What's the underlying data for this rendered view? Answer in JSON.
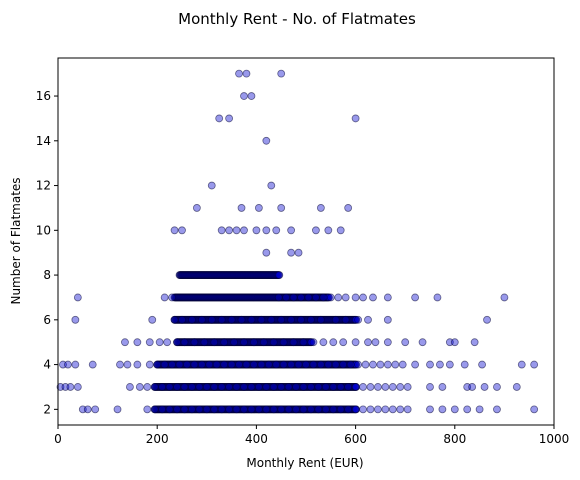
{
  "chart_data": {
    "type": "scatter",
    "title": "Monthly Rent - No. of Flatmates",
    "xlabel": "Monthly Rent (EUR)",
    "ylabel": "Number of Flatmates",
    "xlim": [
      0,
      1000
    ],
    "ylim": [
      1.3,
      17.7
    ],
    "xticks": [
      0,
      200,
      400,
      600,
      800,
      1000
    ],
    "yticks": [
      2,
      4,
      6,
      8,
      10,
      12,
      14,
      16
    ],
    "grid": false,
    "marker_fill": "#0000cc",
    "marker_edge": "#000033",
    "marker_alpha": 0.4,
    "series": [
      {
        "points": [
          [
            365,
            17
          ],
          [
            380,
            17
          ],
          [
            450,
            17
          ],
          [
            375,
            16
          ],
          [
            390,
            16
          ],
          [
            325,
            15
          ],
          [
            345,
            15
          ],
          [
            600,
            15
          ],
          [
            420,
            14
          ],
          [
            310,
            12
          ],
          [
            430,
            12
          ],
          [
            280,
            11
          ],
          [
            370,
            11
          ],
          [
            405,
            11
          ],
          [
            450,
            11
          ],
          [
            530,
            11
          ],
          [
            585,
            11
          ],
          [
            235,
            10
          ],
          [
            250,
            10
          ],
          [
            330,
            10
          ],
          [
            345,
            10
          ],
          [
            360,
            10
          ],
          [
            375,
            10
          ],
          [
            400,
            10
          ],
          [
            420,
            10
          ],
          [
            440,
            10
          ],
          [
            470,
            10
          ],
          [
            520,
            10
          ],
          [
            545,
            10
          ],
          [
            570,
            10
          ],
          [
            420,
            9
          ],
          [
            470,
            9
          ],
          [
            485,
            9
          ],
          [
            445,
            7
          ],
          [
            460,
            7
          ],
          [
            475,
            7
          ],
          [
            490,
            7
          ],
          [
            505,
            7
          ],
          [
            520,
            7
          ],
          [
            535,
            7
          ],
          [
            550,
            7
          ],
          [
            565,
            7
          ],
          [
            580,
            7
          ],
          [
            600,
            7
          ],
          [
            615,
            7
          ],
          [
            635,
            7
          ],
          [
            665,
            7
          ],
          [
            720,
            7
          ],
          [
            765,
            7
          ],
          [
            900,
            7
          ],
          [
            40,
            7
          ],
          [
            215,
            7
          ],
          [
            230,
            7
          ],
          [
            35,
            6
          ],
          [
            190,
            6
          ],
          [
            235,
            6
          ],
          [
            250,
            6
          ],
          [
            270,
            6
          ],
          [
            290,
            6
          ],
          [
            310,
            6
          ],
          [
            330,
            6
          ],
          [
            350,
            6
          ],
          [
            370,
            6
          ],
          [
            390,
            6
          ],
          [
            410,
            6
          ],
          [
            430,
            6
          ],
          [
            450,
            6
          ],
          [
            470,
            6
          ],
          [
            490,
            6
          ],
          [
            510,
            6
          ],
          [
            530,
            6
          ],
          [
            560,
            6
          ],
          [
            580,
            6
          ],
          [
            605,
            6
          ],
          [
            625,
            6
          ],
          [
            665,
            6
          ],
          [
            865,
            6
          ],
          [
            135,
            5
          ],
          [
            160,
            5
          ],
          [
            185,
            5
          ],
          [
            205,
            5
          ],
          [
            220,
            5
          ],
          [
            240,
            5
          ],
          [
            255,
            5
          ],
          [
            275,
            5
          ],
          [
            295,
            5
          ],
          [
            315,
            5
          ],
          [
            335,
            5
          ],
          [
            355,
            5
          ],
          [
            375,
            5
          ],
          [
            395,
            5
          ],
          [
            415,
            5
          ],
          [
            435,
            5
          ],
          [
            455,
            5
          ],
          [
            475,
            5
          ],
          [
            495,
            5
          ],
          [
            515,
            5
          ],
          [
            535,
            5
          ],
          [
            555,
            5
          ],
          [
            575,
            5
          ],
          [
            600,
            5
          ],
          [
            625,
            5
          ],
          [
            640,
            5
          ],
          [
            665,
            5
          ],
          [
            700,
            5
          ],
          [
            735,
            5
          ],
          [
            790,
            5
          ],
          [
            800,
            5
          ],
          [
            840,
            5
          ],
          [
            10,
            4
          ],
          [
            20,
            4
          ],
          [
            35,
            4
          ],
          [
            70,
            4
          ],
          [
            125,
            4
          ],
          [
            140,
            4
          ],
          [
            160,
            4
          ],
          [
            185,
            4
          ],
          [
            200,
            4
          ],
          [
            215,
            4
          ],
          [
            230,
            4
          ],
          [
            245,
            4
          ],
          [
            260,
            4
          ],
          [
            275,
            4
          ],
          [
            290,
            4
          ],
          [
            305,
            4
          ],
          [
            320,
            4
          ],
          [
            335,
            4
          ],
          [
            350,
            4
          ],
          [
            365,
            4
          ],
          [
            380,
            4
          ],
          [
            395,
            4
          ],
          [
            410,
            4
          ],
          [
            425,
            4
          ],
          [
            440,
            4
          ],
          [
            455,
            4
          ],
          [
            470,
            4
          ],
          [
            485,
            4
          ],
          [
            500,
            4
          ],
          [
            515,
            4
          ],
          [
            530,
            4
          ],
          [
            545,
            4
          ],
          [
            560,
            4
          ],
          [
            575,
            4
          ],
          [
            590,
            4
          ],
          [
            605,
            4
          ],
          [
            620,
            4
          ],
          [
            635,
            4
          ],
          [
            650,
            4
          ],
          [
            665,
            4
          ],
          [
            680,
            4
          ],
          [
            695,
            4
          ],
          [
            720,
            4
          ],
          [
            750,
            4
          ],
          [
            770,
            4
          ],
          [
            790,
            4
          ],
          [
            820,
            4
          ],
          [
            855,
            4
          ],
          [
            935,
            4
          ],
          [
            960,
            4
          ],
          [
            5,
            3
          ],
          [
            15,
            3
          ],
          [
            25,
            3
          ],
          [
            40,
            3
          ],
          [
            145,
            3
          ],
          [
            165,
            3
          ],
          [
            180,
            3
          ],
          [
            195,
            3
          ],
          [
            210,
            3
          ],
          [
            225,
            3
          ],
          [
            240,
            3
          ],
          [
            255,
            3
          ],
          [
            270,
            3
          ],
          [
            285,
            3
          ],
          [
            300,
            3
          ],
          [
            315,
            3
          ],
          [
            330,
            3
          ],
          [
            345,
            3
          ],
          [
            360,
            3
          ],
          [
            375,
            3
          ],
          [
            390,
            3
          ],
          [
            405,
            3
          ],
          [
            420,
            3
          ],
          [
            435,
            3
          ],
          [
            450,
            3
          ],
          [
            465,
            3
          ],
          [
            480,
            3
          ],
          [
            495,
            3
          ],
          [
            510,
            3
          ],
          [
            525,
            3
          ],
          [
            540,
            3
          ],
          [
            555,
            3
          ],
          [
            570,
            3
          ],
          [
            585,
            3
          ],
          [
            600,
            3
          ],
          [
            615,
            3
          ],
          [
            630,
            3
          ],
          [
            645,
            3
          ],
          [
            660,
            3
          ],
          [
            675,
            3
          ],
          [
            690,
            3
          ],
          [
            705,
            3
          ],
          [
            750,
            3
          ],
          [
            775,
            3
          ],
          [
            825,
            3
          ],
          [
            835,
            3
          ],
          [
            860,
            3
          ],
          [
            885,
            3
          ],
          [
            925,
            3
          ],
          [
            50,
            2
          ],
          [
            60,
            2
          ],
          [
            75,
            2
          ],
          [
            120,
            2
          ],
          [
            180,
            2
          ],
          [
            195,
            2
          ],
          [
            210,
            2
          ],
          [
            225,
            2
          ],
          [
            240,
            2
          ],
          [
            255,
            2
          ],
          [
            270,
            2
          ],
          [
            285,
            2
          ],
          [
            300,
            2
          ],
          [
            315,
            2
          ],
          [
            330,
            2
          ],
          [
            345,
            2
          ],
          [
            360,
            2
          ],
          [
            375,
            2
          ],
          [
            390,
            2
          ],
          [
            405,
            2
          ],
          [
            420,
            2
          ],
          [
            435,
            2
          ],
          [
            450,
            2
          ],
          [
            465,
            2
          ],
          [
            480,
            2
          ],
          [
            495,
            2
          ],
          [
            510,
            2
          ],
          [
            525,
            2
          ],
          [
            540,
            2
          ],
          [
            555,
            2
          ],
          [
            570,
            2
          ],
          [
            585,
            2
          ],
          [
            600,
            2
          ],
          [
            615,
            2
          ],
          [
            630,
            2
          ],
          [
            645,
            2
          ],
          [
            660,
            2
          ],
          [
            675,
            2
          ],
          [
            690,
            2
          ],
          [
            705,
            2
          ],
          [
            750,
            2
          ],
          [
            775,
            2
          ],
          [
            800,
            2
          ],
          [
            825,
            2
          ],
          [
            850,
            2
          ],
          [
            885,
            2
          ],
          [
            960,
            2
          ]
        ]
      }
    ],
    "dense_bands": [
      {
        "y": 2,
        "x_range": [
          195,
          600
        ]
      },
      {
        "y": 3,
        "x_range": [
          195,
          600
        ]
      },
      {
        "y": 4,
        "x_range": [
          200,
          600
        ]
      },
      {
        "y": 5,
        "x_range": [
          240,
          510
        ]
      },
      {
        "y": 6,
        "x_range": [
          235,
          600
        ]
      },
      {
        "y": 7,
        "x_range": [
          235,
          545
        ]
      },
      {
        "y": 8,
        "x_range": [
          245,
          445
        ]
      }
    ]
  }
}
